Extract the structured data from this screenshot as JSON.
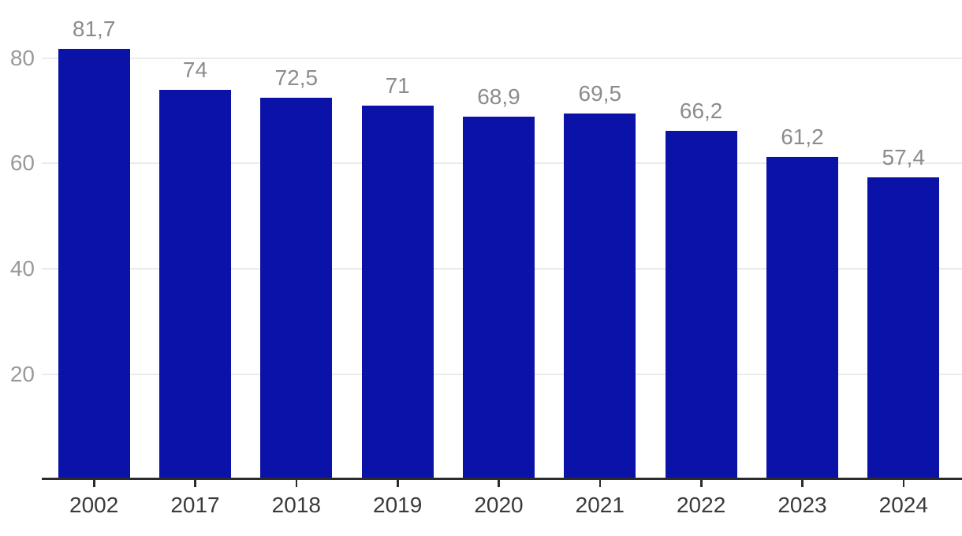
{
  "chart_data": {
    "type": "bar",
    "categories": [
      "2002",
      "2017",
      "2018",
      "2019",
      "2020",
      "2021",
      "2022",
      "2023",
      "2024"
    ],
    "values": [
      81.7,
      74,
      72.5,
      71,
      68.9,
      69.5,
      66.2,
      61.2,
      57.4
    ],
    "value_labels": [
      "81,7",
      "74",
      "72,5",
      "71",
      "68,9",
      "69,5",
      "66,2",
      "61,2",
      "57,4"
    ],
    "title": "",
    "xlabel": "",
    "ylabel": "",
    "ylim": [
      0,
      91
    ],
    "yticks": [
      20,
      40,
      60,
      80
    ],
    "grid": true,
    "legend_position": "none",
    "colors": {
      "bar": "#0b12a8",
      "value_label": "#8c8c8c",
      "y_tick_label": "#999999",
      "x_tick_label": "#3a3a3a",
      "gridline": "#ebebeb",
      "axis_line": "#2b2b2b",
      "background": "#ffffff"
    }
  }
}
